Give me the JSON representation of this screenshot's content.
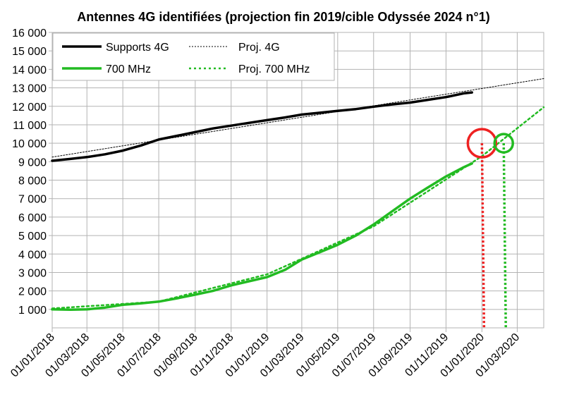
{
  "chart_data": {
    "type": "line",
    "title": "Antennes 4G identifiées (projection fin 2019/cible Odyssée 2024 n°1)",
    "xlabel": "",
    "ylabel": "",
    "ylim": [
      0,
      16000
    ],
    "xlim": [
      "2018-01-01",
      "2020-04-15"
    ],
    "grid": "horizontal and vertical",
    "legend_placement": "top-left",
    "y_tick_labels": [
      "1 000",
      "2 000",
      "3 000",
      "4 000",
      "5 000",
      "6 000",
      "7 000",
      "8 000",
      "9 000",
      "10 000",
      "11 000",
      "12 000",
      "13 000",
      "14 000",
      "15 000",
      "16 000"
    ],
    "x_tick_labels": [
      "01/01/2018",
      "01/03/2018",
      "01/05/2018",
      "01/07/2018",
      "01/09/2018",
      "01/11/2018",
      "01/01/2019",
      "01/03/2019",
      "01/05/2019",
      "01/07/2019",
      "01/09/2019",
      "01/11/2019",
      "01/01/2020",
      "01/03/2020"
    ],
    "series": [
      {
        "name": "Supports 4G",
        "color": "#000000",
        "style": "solid",
        "points": [
          [
            "2018-01-01",
            9050
          ],
          [
            "2018-02-01",
            9150
          ],
          [
            "2018-03-01",
            9250
          ],
          [
            "2018-04-01",
            9400
          ],
          [
            "2018-05-01",
            9600
          ],
          [
            "2018-06-01",
            9880
          ],
          [
            "2018-07-01",
            10200
          ],
          [
            "2018-08-01",
            10400
          ],
          [
            "2018-09-01",
            10600
          ],
          [
            "2018-10-01",
            10800
          ],
          [
            "2018-11-01",
            10950
          ],
          [
            "2018-12-01",
            11100
          ],
          [
            "2019-01-01",
            11250
          ],
          [
            "2019-02-01",
            11400
          ],
          [
            "2019-03-01",
            11550
          ],
          [
            "2019-04-01",
            11650
          ],
          [
            "2019-05-01",
            11750
          ],
          [
            "2019-06-01",
            11850
          ],
          [
            "2019-07-01",
            11980
          ],
          [
            "2019-08-01",
            12100
          ],
          [
            "2019-09-01",
            12200
          ],
          [
            "2019-10-01",
            12350
          ],
          [
            "2019-11-01",
            12500
          ],
          [
            "2019-12-01",
            12700
          ],
          [
            "2019-12-15",
            12750
          ]
        ]
      },
      {
        "name": "Proj. 4G",
        "color": "#000000",
        "style": "dotted",
        "points": [
          [
            "2018-01-01",
            9250
          ],
          [
            "2020-04-15",
            13500
          ]
        ]
      },
      {
        "name": "700 MHz",
        "color": "#22bb22",
        "style": "solid",
        "points": [
          [
            "2018-01-01",
            1000
          ],
          [
            "2018-02-01",
            980
          ],
          [
            "2018-03-01",
            1000
          ],
          [
            "2018-04-01",
            1100
          ],
          [
            "2018-05-01",
            1250
          ],
          [
            "2018-06-01",
            1330
          ],
          [
            "2018-07-01",
            1420
          ],
          [
            "2018-08-01",
            1600
          ],
          [
            "2018-09-01",
            1800
          ],
          [
            "2018-10-01",
            2000
          ],
          [
            "2018-11-01",
            2300
          ],
          [
            "2018-12-01",
            2520
          ],
          [
            "2019-01-01",
            2750
          ],
          [
            "2019-02-01",
            3150
          ],
          [
            "2019-03-01",
            3700
          ],
          [
            "2019-04-01",
            4100
          ],
          [
            "2019-05-01",
            4500
          ],
          [
            "2019-06-01",
            5000
          ],
          [
            "2019-07-01",
            5600
          ],
          [
            "2019-08-01",
            6300
          ],
          [
            "2019-09-01",
            7000
          ],
          [
            "2019-10-01",
            7600
          ],
          [
            "2019-11-01",
            8200
          ],
          [
            "2019-12-01",
            8700
          ],
          [
            "2019-12-15",
            8900
          ]
        ]
      },
      {
        "name": "Proj. 700 MHz",
        "color": "#22bb22",
        "style": "dotted",
        "points": [
          [
            "2018-01-01",
            1050
          ],
          [
            "2018-07-01",
            1420
          ],
          [
            "2019-01-01",
            2900
          ],
          [
            "2019-07-01",
            5500
          ],
          [
            "2020-01-01",
            9300
          ],
          [
            "2020-04-15",
            11950
          ]
        ]
      }
    ],
    "annotations": [
      {
        "type": "circle",
        "color": "#ee2222",
        "x": "2020-01-01",
        "y": 10000
      },
      {
        "type": "dotted-drop-line",
        "color": "#ee2222",
        "x": "2020-01-01",
        "y_from": 10000,
        "y_to": 0
      },
      {
        "type": "circle",
        "color": "#22bb22",
        "x": "2020-02-07",
        "y": 10000
      },
      {
        "type": "dotted-drop-line",
        "color": "#22bb22",
        "x": "2020-02-07",
        "y_from": 10000,
        "y_to": 0
      }
    ]
  }
}
